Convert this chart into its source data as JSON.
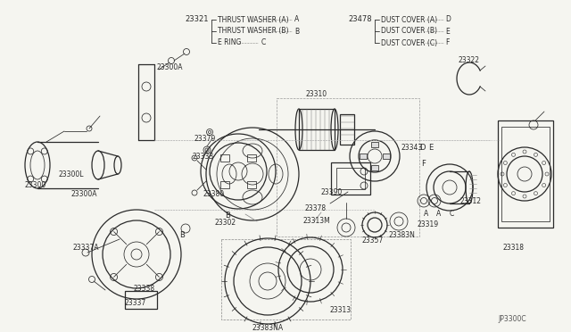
{
  "bg_color": "#f5f5f0",
  "line_color": "#2a2a2a",
  "light_color": "#666666",
  "diagram_code": "JP3300C",
  "figsize": [
    6.4,
    3.72
  ],
  "dpi": 100,
  "legend": {
    "left_num": "23321",
    "left_items": [
      [
        "THRUST WASHER (A)",
        "A"
      ],
      [
        "THRUST WASHER (B)",
        "B"
      ],
      [
        "E RING",
        "C"
      ]
    ],
    "right_num": "23478",
    "right_items": [
      [
        "DUST COVER (A)",
        "D"
      ],
      [
        "DUST COVER (B)",
        "E"
      ],
      [
        "DUST COVER (C)",
        "F"
      ]
    ]
  }
}
